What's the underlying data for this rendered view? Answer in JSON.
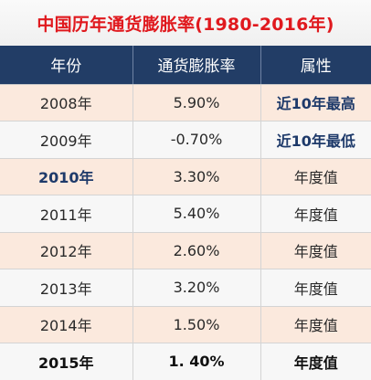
{
  "title": "中国历年通货膨胀率(1980-2016年)",
  "headers": [
    "年份",
    "通货膨胀率",
    "属性"
  ],
  "rows": [
    {
      "year": "2008年",
      "rate": "5.90%",
      "attr": "近10年最高"
    },
    {
      "year": "2009年",
      "rate": "-0.70%",
      "attr": "近10年最低"
    },
    {
      "year": "2010年",
      "rate": "3.30%",
      "attr": "年度值"
    },
    {
      "year": "2011年",
      "rate": "5.40%",
      "attr": "年度值"
    },
    {
      "year": "2012年",
      "rate": "2.60%",
      "attr": "年度值"
    },
    {
      "year": "2013年",
      "rate": "3.20%",
      "attr": "年度值"
    },
    {
      "year": "2014年",
      "rate": "1.50%",
      "attr": "年度值"
    },
    {
      "year": "2015年",
      "rate": "1. 40%",
      "attr": "年度值"
    }
  ]
}
